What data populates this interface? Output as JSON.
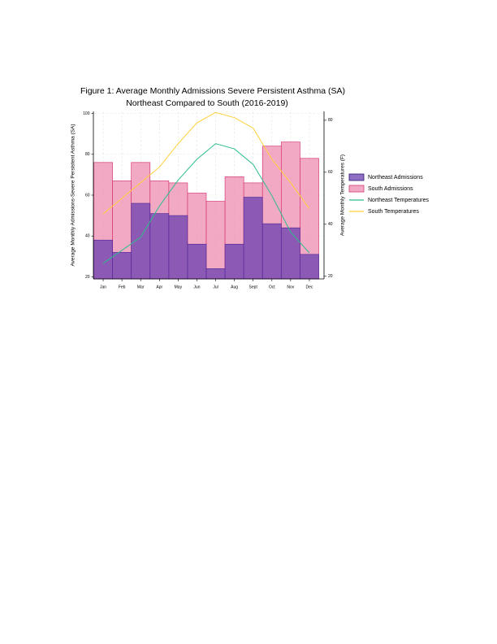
{
  "chart_data": {
    "type": "bar",
    "title": "Figure 1: Average Monthly Admissions Severe Persistent Asthma (SA)",
    "subtitle": "Northeast Compared to South (2016-2019)",
    "y_label": "Average Monthly Admissions-Severe Persistent Asthma (SA)",
    "y2_label": "Average Monthly Temperatures (F)",
    "categories": [
      "Jan",
      "Feb",
      "Mar",
      "Apr",
      "May",
      "Jun",
      "Jul",
      "Aug",
      "Sept",
      "Oct",
      "Nov",
      "Dec"
    ],
    "series": [
      {
        "name": "Northeast Admissions",
        "type": "bar",
        "color": "#6a3fb0",
        "values": [
          38,
          32,
          56,
          51,
          50,
          36,
          24,
          36,
          59,
          46,
          44,
          31
        ]
      },
      {
        "name": "South Admissions",
        "type": "bar",
        "color": "#ee8db0",
        "values": [
          76,
          67,
          76,
          67,
          66,
          61,
          57,
          69,
          66,
          84,
          86,
          78
        ]
      },
      {
        "name": "Northeast Temperatures",
        "type": "line",
        "axis": "y2",
        "color": "#2dbd8a",
        "values": [
          25,
          30,
          35,
          47,
          57,
          65,
          71,
          69,
          63,
          51,
          37,
          29
        ]
      },
      {
        "name": "South Temperatures",
        "type": "line",
        "axis": "y2",
        "color": "#ffd13b",
        "values": [
          44,
          50,
          56,
          62,
          71,
          79,
          83,
          81,
          77,
          65,
          56,
          46
        ]
      }
    ],
    "ylim": [
      19,
      101
    ],
    "yticks": [
      20,
      40,
      60,
      80,
      100
    ],
    "y2lim": [
      19,
      83.4
    ],
    "y2ticks": [
      20,
      40,
      60,
      80
    ],
    "grid": true,
    "legend": "right"
  }
}
